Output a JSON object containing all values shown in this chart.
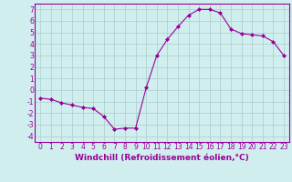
{
  "x": [
    0,
    1,
    2,
    3,
    4,
    5,
    6,
    7,
    8,
    9,
    10,
    11,
    12,
    13,
    14,
    15,
    16,
    17,
    18,
    19,
    20,
    21,
    22,
    23
  ],
  "y": [
    -0.7,
    -0.8,
    -1.1,
    -1.3,
    -1.5,
    -1.6,
    -2.3,
    -3.4,
    -3.3,
    -3.3,
    0.2,
    3.0,
    4.4,
    5.5,
    6.5,
    7.0,
    7.0,
    6.7,
    5.3,
    4.9,
    4.8,
    4.7,
    4.2,
    3.0
  ],
  "line_color": "#990099",
  "marker": "D",
  "marker_size": 2.0,
  "bg_color": "#d0eeee",
  "grid_color": "#aacccc",
  "xlabel": "Windchill (Refroidissement éolien,°C)",
  "xlim": [
    -0.5,
    23.5
  ],
  "ylim": [
    -4.5,
    7.5
  ],
  "yticks": [
    -4,
    -3,
    -2,
    -1,
    0,
    1,
    2,
    3,
    4,
    5,
    6,
    7
  ],
  "xticks": [
    0,
    1,
    2,
    3,
    4,
    5,
    6,
    7,
    8,
    9,
    10,
    11,
    12,
    13,
    14,
    15,
    16,
    17,
    18,
    19,
    20,
    21,
    22,
    23
  ],
  "tick_fontsize": 5.5,
  "xlabel_fontsize": 6.5
}
